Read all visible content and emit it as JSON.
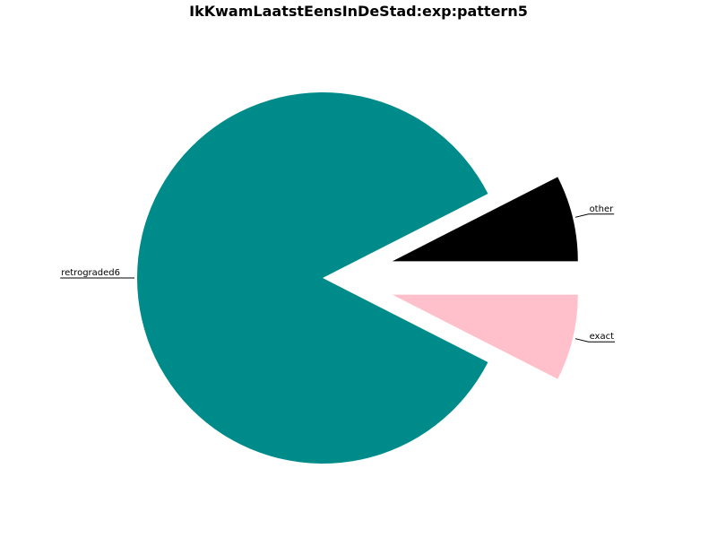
{
  "chart_data": {
    "type": "pie",
    "title": "IkKwamLaatstEensInDeStad:exp:pattern5",
    "slices": [
      {
        "label": "other",
        "value": 7.5,
        "color": "#000000",
        "exploded": true
      },
      {
        "label": "exact",
        "value": 7.5,
        "color": "#ffc0cb",
        "exploded": true
      },
      {
        "label": "retrograded6",
        "value": 85,
        "color": "#008b8b",
        "exploded": false
      }
    ]
  }
}
